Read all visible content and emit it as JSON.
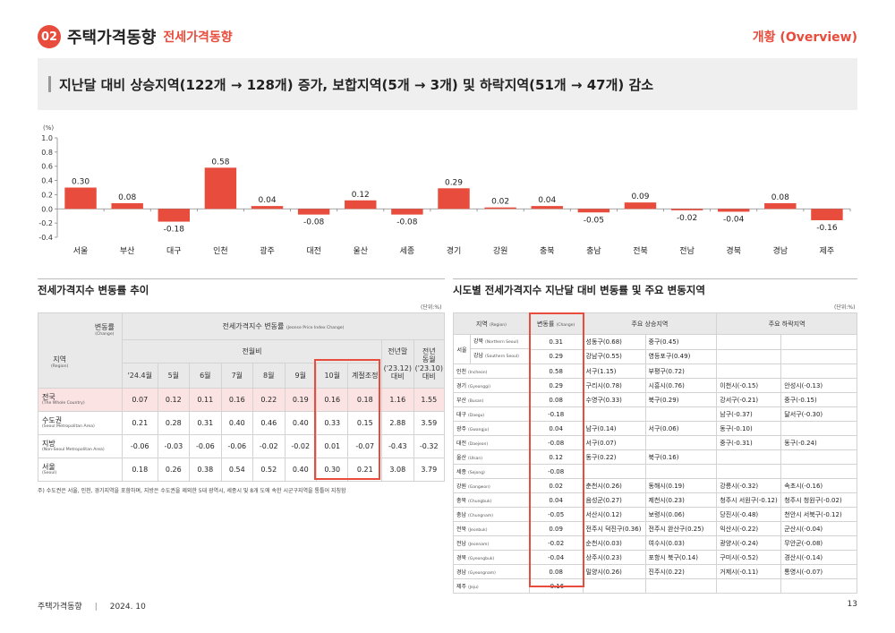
{
  "header": {
    "number": "02",
    "title": "주택가격동향",
    "subtitle": "전세가격동향",
    "right": "개황 (Overview)"
  },
  "banner": "지난달 대비 상승지역(122개 → 128개) 증가, 보합지역(5개 → 3개) 및 하락지역(51개 → 47개) 감소",
  "chart_data": {
    "type": "bar",
    "unit_label": "(%)",
    "categories": [
      "서울",
      "부산",
      "대구",
      "인천",
      "광주",
      "대전",
      "울산",
      "세종",
      "경기",
      "강원",
      "충북",
      "충남",
      "전북",
      "전남",
      "경북",
      "경남",
      "제주"
    ],
    "values": [
      0.3,
      0.08,
      -0.18,
      0.58,
      0.04,
      -0.08,
      0.12,
      -0.08,
      0.29,
      0.02,
      0.04,
      -0.05,
      0.09,
      -0.02,
      -0.04,
      0.08,
      -0.16
    ],
    "value_labels": [
      "0.30",
      "0.08",
      "-0.18",
      "0.58",
      "0.04",
      "-0.08",
      "0.12",
      "-0.08",
      "0.29",
      "0.02",
      "0.04",
      "-0.05",
      "0.09",
      "-0.02",
      "-0.04",
      "0.08",
      "-0.16"
    ],
    "yticks": [
      "1.0",
      "0.8",
      "0.6",
      "0.4",
      "0.2",
      "0.0",
      "-0.2",
      "-0.4"
    ],
    "ylim": [
      -0.4,
      1.0
    ],
    "color": "#e74c3c"
  },
  "left": {
    "title": "전세가격지수 변동률 추이",
    "unit": "(단위:%)",
    "h_change": "변동률",
    "h_change_en": "(Change)",
    "h_region": "지역",
    "h_region_en": "(Region)",
    "h_index": "전세가격지수 변동률",
    "h_index_en": "(Jeonse Price Index Change)",
    "h_mom": "전월비",
    "h_ytd": "전년말",
    "h_ytd2": "('23.12)",
    "h_ytd3": "대비",
    "h_yoy": "전년",
    "h_yoy2": "동월",
    "h_yoy3": "('23.10)",
    "h_yoy4": "대비",
    "months": [
      "'24.4월",
      "5월",
      "6월",
      "7월",
      "8월",
      "9월",
      "10월",
      "계절조정"
    ],
    "rows": [
      {
        "name": "전국",
        "en": "(The Whole Country)",
        "v": [
          "0.07",
          "0.12",
          "0.11",
          "0.16",
          "0.22",
          "0.19",
          "0.16",
          "0.18",
          "1.16",
          "1.55"
        ]
      },
      {
        "name": "수도권",
        "en": "(Seoul Metropolitan Area)",
        "v": [
          "0.21",
          "0.28",
          "0.31",
          "0.40",
          "0.46",
          "0.40",
          "0.33",
          "0.15",
          "2.88",
          "3.59"
        ]
      },
      {
        "name": "지방",
        "en": "(Non-Seoul Metropolitan Area)",
        "v": [
          "-0.06",
          "-0.03",
          "-0.06",
          "-0.06",
          "-0.02",
          "-0.02",
          "0.01",
          "-0.07",
          "-0.43",
          "-0.32"
        ]
      },
      {
        "name": "서울",
        "en": "(Seoul)",
        "v": [
          "0.18",
          "0.26",
          "0.38",
          "0.54",
          "0.52",
          "0.40",
          "0.30",
          "0.21",
          "3.08",
          "3.79"
        ]
      }
    ],
    "note": "주) 수도권은 서울, 인천, 경기지역을 포함하며, 지방은 수도권을 제외한 5대 광역시, 세종시 및 8개 도에 속한 시군구지역을 통틀어 지칭함"
  },
  "right": {
    "title": "시도별 전세가격지수 지난달 대비 변동률 및 주요 변동지역",
    "unit": "(단위:%)",
    "h_region": "지역",
    "h_region_en": "(Region)",
    "h_change": "변동률",
    "h_change_en": "(Change)",
    "h_up": "주요 상승지역",
    "h_down": "주요 하락지역",
    "seoul_label": "서울",
    "rows": [
      {
        "name": "강북",
        "en": "(Northern Seoul)",
        "v": "0.31",
        "u1": "성동구(0.68)",
        "u2": "중구(0.45)",
        "d1": "",
        "d2": ""
      },
      {
        "name": "강남",
        "en": "(Southern Seoul)",
        "v": "0.29",
        "u1": "강남구(0.55)",
        "u2": "영등포구(0.49)",
        "d1": "",
        "d2": ""
      },
      {
        "name": "인천",
        "en": "(Incheon)",
        "v": "0.58",
        "u1": "서구(1.15)",
        "u2": "부평구(0.72)",
        "d1": "",
        "d2": ""
      },
      {
        "name": "경기",
        "en": "(Gyeonggi)",
        "v": "0.29",
        "u1": "구리시(0.78)",
        "u2": "시흥시(0.76)",
        "d1": "이천시(-0.15)",
        "d2": "안성시(-0.13)"
      },
      {
        "name": "부산",
        "en": "(Busan)",
        "v": "0.08",
        "u1": "수영구(0.33)",
        "u2": "북구(0.29)",
        "d1": "강서구(-0.21)",
        "d2": "중구(-0.15)"
      },
      {
        "name": "대구",
        "en": "(Daegu)",
        "v": "-0.18",
        "u1": "",
        "u2": "",
        "d1": "남구(-0.37)",
        "d2": "달서구(-0.30)"
      },
      {
        "name": "광주",
        "en": "(Gwangju)",
        "v": "0.04",
        "u1": "남구(0.14)",
        "u2": "서구(0.06)",
        "d1": "동구(-0.10)",
        "d2": ""
      },
      {
        "name": "대전",
        "en": "(Daejeon)",
        "v": "-0.08",
        "u1": "서구(0.07)",
        "u2": "",
        "d1": "중구(-0.31)",
        "d2": "동구(-0.24)"
      },
      {
        "name": "울산",
        "en": "(Ulsan)",
        "v": "0.12",
        "u1": "동구(0.22)",
        "u2": "북구(0.16)",
        "d1": "",
        "d2": ""
      },
      {
        "name": "세종",
        "en": "(Sejong)",
        "v": "-0.08",
        "u1": "",
        "u2": "",
        "d1": "",
        "d2": ""
      },
      {
        "name": "강원",
        "en": "(Gangwon)",
        "v": "0.02",
        "u1": "춘천시(0.26)",
        "u2": "동해시(0.19)",
        "d1": "강릉시(-0.32)",
        "d2": "속초시(-0.16)"
      },
      {
        "name": "충북",
        "en": "(Chungbuk)",
        "v": "0.04",
        "u1": "음성군(0.27)",
        "u2": "제천시(0.23)",
        "d1": "청주시 서원구(-0.12)",
        "d2": "청주시 청원구(-0.02)"
      },
      {
        "name": "충남",
        "en": "(Chungnam)",
        "v": "-0.05",
        "u1": "서산시(0.12)",
        "u2": "보령시(0.06)",
        "d1": "당진시(-0.48)",
        "d2": "천안시 서북구(-0.12)"
      },
      {
        "name": "전북",
        "en": "(Jeonbuk)",
        "v": "0.09",
        "u1": "전주시 덕진구(0.36)",
        "u2": "전주시 완산구(0.25)",
        "d1": "익산시(-0.22)",
        "d2": "군산시(-0.04)"
      },
      {
        "name": "전남",
        "en": "(Jeonnam)",
        "v": "-0.02",
        "u1": "순천시(0.03)",
        "u2": "여수시(0.03)",
        "d1": "광양시(-0.24)",
        "d2": "무안군(-0.08)"
      },
      {
        "name": "경북",
        "en": "(Gyeongbuk)",
        "v": "-0.04",
        "u1": "상주시(0.23)",
        "u2": "포항시 북구(0.14)",
        "d1": "구미시(-0.52)",
        "d2": "경산시(-0.14)"
      },
      {
        "name": "경남",
        "en": "(Gyeongnam)",
        "v": "0.08",
        "u1": "밀양시(0.26)",
        "u2": "진주시(0.22)",
        "d1": "거제시(-0.11)",
        "d2": "통영시(-0.07)"
      },
      {
        "name": "제주",
        "en": "(Jeju)",
        "v": "-0.16",
        "u1": "",
        "u2": "",
        "d1": "",
        "d2": ""
      }
    ]
  },
  "footer": {
    "left": "주택가격동향",
    "date": "2024. 10",
    "page": "13"
  }
}
